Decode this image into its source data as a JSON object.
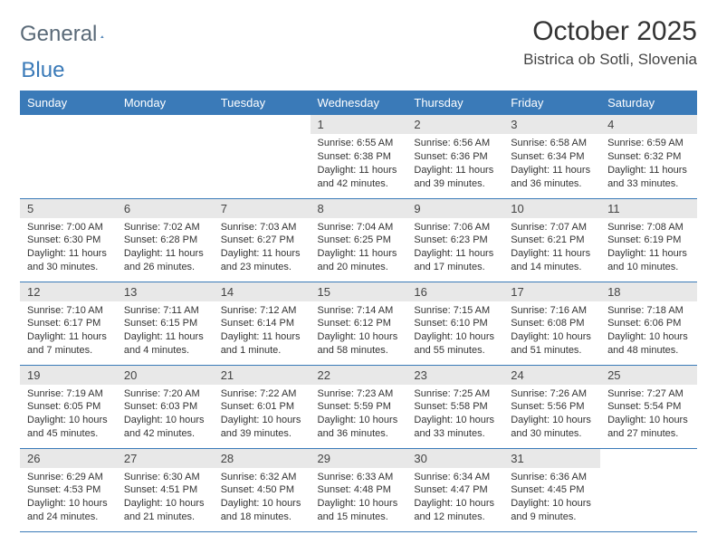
{
  "logo": {
    "text_general": "General",
    "text_blue": "Blue",
    "triangle_color": "#3a7ab8"
  },
  "title": "October 2025",
  "location": "Bistrica ob Sotli, Slovenia",
  "day_headers": [
    "Sunday",
    "Monday",
    "Tuesday",
    "Wednesday",
    "Thursday",
    "Friday",
    "Saturday"
  ],
  "colors": {
    "header_bg": "#3a7ab8",
    "header_fg": "#ffffff",
    "daynum_bg": "#e8e8e8",
    "border": "#3a7ab8"
  },
  "weeks": [
    [
      null,
      null,
      null,
      {
        "num": 1,
        "sunrise": "6:55 AM",
        "sunset": "6:38 PM",
        "daylight": "11 hours and 42 minutes."
      },
      {
        "num": 2,
        "sunrise": "6:56 AM",
        "sunset": "6:36 PM",
        "daylight": "11 hours and 39 minutes."
      },
      {
        "num": 3,
        "sunrise": "6:58 AM",
        "sunset": "6:34 PM",
        "daylight": "11 hours and 36 minutes."
      },
      {
        "num": 4,
        "sunrise": "6:59 AM",
        "sunset": "6:32 PM",
        "daylight": "11 hours and 33 minutes."
      }
    ],
    [
      {
        "num": 5,
        "sunrise": "7:00 AM",
        "sunset": "6:30 PM",
        "daylight": "11 hours and 30 minutes."
      },
      {
        "num": 6,
        "sunrise": "7:02 AM",
        "sunset": "6:28 PM",
        "daylight": "11 hours and 26 minutes."
      },
      {
        "num": 7,
        "sunrise": "7:03 AM",
        "sunset": "6:27 PM",
        "daylight": "11 hours and 23 minutes."
      },
      {
        "num": 8,
        "sunrise": "7:04 AM",
        "sunset": "6:25 PM",
        "daylight": "11 hours and 20 minutes."
      },
      {
        "num": 9,
        "sunrise": "7:06 AM",
        "sunset": "6:23 PM",
        "daylight": "11 hours and 17 minutes."
      },
      {
        "num": 10,
        "sunrise": "7:07 AM",
        "sunset": "6:21 PM",
        "daylight": "11 hours and 14 minutes."
      },
      {
        "num": 11,
        "sunrise": "7:08 AM",
        "sunset": "6:19 PM",
        "daylight": "11 hours and 10 minutes."
      }
    ],
    [
      {
        "num": 12,
        "sunrise": "7:10 AM",
        "sunset": "6:17 PM",
        "daylight": "11 hours and 7 minutes."
      },
      {
        "num": 13,
        "sunrise": "7:11 AM",
        "sunset": "6:15 PM",
        "daylight": "11 hours and 4 minutes."
      },
      {
        "num": 14,
        "sunrise": "7:12 AM",
        "sunset": "6:14 PM",
        "daylight": "11 hours and 1 minute."
      },
      {
        "num": 15,
        "sunrise": "7:14 AM",
        "sunset": "6:12 PM",
        "daylight": "10 hours and 58 minutes."
      },
      {
        "num": 16,
        "sunrise": "7:15 AM",
        "sunset": "6:10 PM",
        "daylight": "10 hours and 55 minutes."
      },
      {
        "num": 17,
        "sunrise": "7:16 AM",
        "sunset": "6:08 PM",
        "daylight": "10 hours and 51 minutes."
      },
      {
        "num": 18,
        "sunrise": "7:18 AM",
        "sunset": "6:06 PM",
        "daylight": "10 hours and 48 minutes."
      }
    ],
    [
      {
        "num": 19,
        "sunrise": "7:19 AM",
        "sunset": "6:05 PM",
        "daylight": "10 hours and 45 minutes."
      },
      {
        "num": 20,
        "sunrise": "7:20 AM",
        "sunset": "6:03 PM",
        "daylight": "10 hours and 42 minutes."
      },
      {
        "num": 21,
        "sunrise": "7:22 AM",
        "sunset": "6:01 PM",
        "daylight": "10 hours and 39 minutes."
      },
      {
        "num": 22,
        "sunrise": "7:23 AM",
        "sunset": "5:59 PM",
        "daylight": "10 hours and 36 minutes."
      },
      {
        "num": 23,
        "sunrise": "7:25 AM",
        "sunset": "5:58 PM",
        "daylight": "10 hours and 33 minutes."
      },
      {
        "num": 24,
        "sunrise": "7:26 AM",
        "sunset": "5:56 PM",
        "daylight": "10 hours and 30 minutes."
      },
      {
        "num": 25,
        "sunrise": "7:27 AM",
        "sunset": "5:54 PM",
        "daylight": "10 hours and 27 minutes."
      }
    ],
    [
      {
        "num": 26,
        "sunrise": "6:29 AM",
        "sunset": "4:53 PM",
        "daylight": "10 hours and 24 minutes."
      },
      {
        "num": 27,
        "sunrise": "6:30 AM",
        "sunset": "4:51 PM",
        "daylight": "10 hours and 21 minutes."
      },
      {
        "num": 28,
        "sunrise": "6:32 AM",
        "sunset": "4:50 PM",
        "daylight": "10 hours and 18 minutes."
      },
      {
        "num": 29,
        "sunrise": "6:33 AM",
        "sunset": "4:48 PM",
        "daylight": "10 hours and 15 minutes."
      },
      {
        "num": 30,
        "sunrise": "6:34 AM",
        "sunset": "4:47 PM",
        "daylight": "10 hours and 12 minutes."
      },
      {
        "num": 31,
        "sunrise": "6:36 AM",
        "sunset": "4:45 PM",
        "daylight": "10 hours and 9 minutes."
      },
      null
    ]
  ],
  "labels": {
    "sunrise": "Sunrise: ",
    "sunset": "Sunset: ",
    "daylight": "Daylight: "
  }
}
